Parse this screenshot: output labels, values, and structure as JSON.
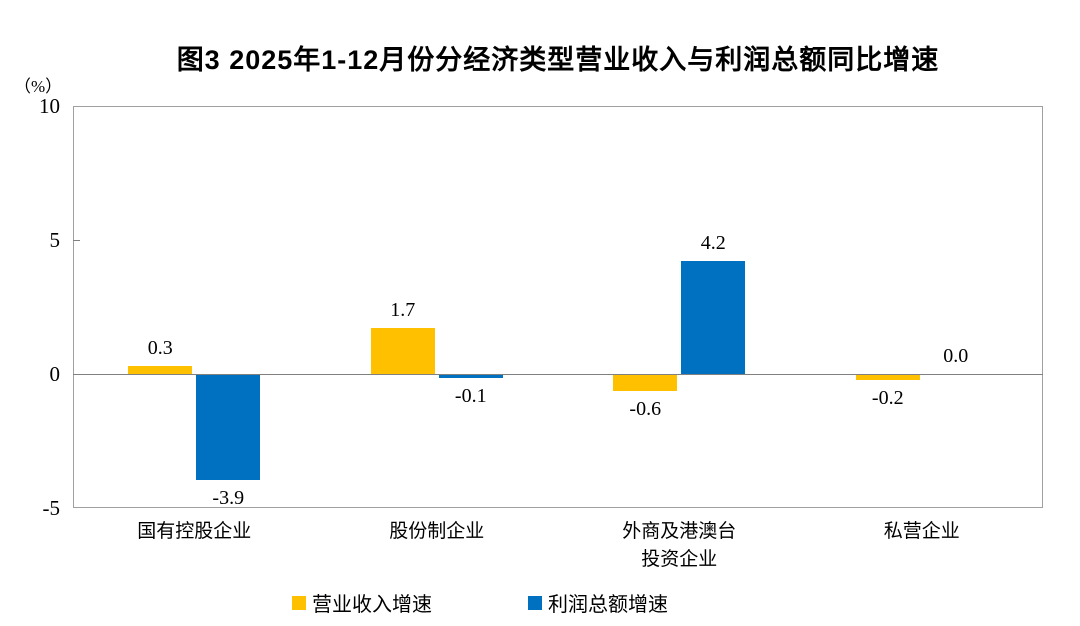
{
  "title": "图3  2025年1-12月份分经济类型营业收入与利润总额同比增速",
  "chart_data": {
    "type": "bar",
    "categories": [
      "国有控股企业",
      "股份制企业",
      "外商及港澳台\n投资企业",
      "私营企业"
    ],
    "series": [
      {
        "name": "营业收入增速",
        "color": "#FFC000",
        "values": [
          0.3,
          1.7,
          -0.6,
          -0.2
        ],
        "labels": [
          "0.3",
          "1.7",
          "-0.6",
          "-0.2"
        ]
      },
      {
        "name": "利润总额增速",
        "color": "#0070C0",
        "values": [
          -3.9,
          -0.1,
          4.2,
          0.0
        ],
        "labels": [
          "-3.9",
          "-0.1",
          "4.2",
          "0.0"
        ]
      }
    ],
    "title": "图3  2025年1-12月份分经济类型营业收入与利润总额同比增速",
    "xlabel": "",
    "ylabel": "（%）",
    "ylim": [
      -5,
      10
    ],
    "yticks": [
      10,
      5,
      0,
      -5
    ],
    "grid": false,
    "legend_position": "bottom",
    "colors": {
      "axis_frame": "#a0a0a0",
      "zero_line": "#808080",
      "text": "#000000"
    }
  }
}
